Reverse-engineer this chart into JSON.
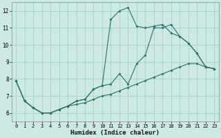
{
  "xlabel": "Humidex (Indice chaleur)",
  "bg_color": "#cce9e5",
  "grid_color": "#aacfcb",
  "line_color": "#2d7068",
  "xlim": [
    -0.5,
    23.5
  ],
  "ylim": [
    5.5,
    12.5
  ],
  "xticks": [
    0,
    1,
    2,
    3,
    4,
    5,
    6,
    7,
    8,
    9,
    10,
    11,
    12,
    13,
    14,
    15,
    16,
    17,
    18,
    19,
    20,
    21,
    22,
    23
  ],
  "yticks": [
    6,
    7,
    8,
    9,
    10,
    11,
    12
  ],
  "line1_x": [
    0,
    1,
    2,
    3,
    4,
    5,
    6,
    7,
    8,
    9,
    10,
    11,
    12,
    13,
    14,
    15,
    16,
    17,
    18,
    19,
    20,
    21,
    22,
    23
  ],
  "line1_y": [
    7.9,
    6.7,
    6.3,
    6.0,
    6.0,
    6.2,
    6.4,
    6.5,
    6.6,
    6.8,
    7.0,
    7.1,
    7.3,
    7.5,
    7.7,
    7.9,
    8.1,
    8.3,
    8.5,
    8.7,
    8.9,
    8.9,
    8.7,
    8.6
  ],
  "line2_x": [
    0,
    1,
    2,
    3,
    4,
    5,
    6,
    7,
    8,
    9,
    10,
    11,
    12,
    13,
    14,
    15,
    16,
    17,
    18,
    19,
    20,
    21,
    22,
    23
  ],
  "line2_y": [
    7.9,
    6.7,
    6.3,
    6.0,
    6.0,
    6.2,
    6.4,
    6.7,
    6.8,
    7.4,
    7.6,
    7.7,
    8.3,
    7.7,
    8.9,
    9.4,
    11.0,
    11.0,
    11.2,
    10.5,
    10.1,
    9.5,
    8.7,
    8.6
  ],
  "line3_x": [
    0,
    1,
    2,
    3,
    4,
    5,
    6,
    7,
    8,
    9,
    10,
    11,
    12,
    13,
    14,
    15,
    16,
    17,
    18,
    19,
    20,
    21,
    22,
    23
  ],
  "line3_y": [
    7.9,
    6.7,
    6.3,
    6.0,
    6.0,
    6.2,
    6.4,
    6.7,
    6.8,
    7.4,
    7.6,
    11.5,
    12.0,
    12.2,
    11.1,
    11.0,
    11.1,
    11.2,
    10.7,
    10.5,
    10.1,
    9.5,
    8.7,
    8.6
  ]
}
